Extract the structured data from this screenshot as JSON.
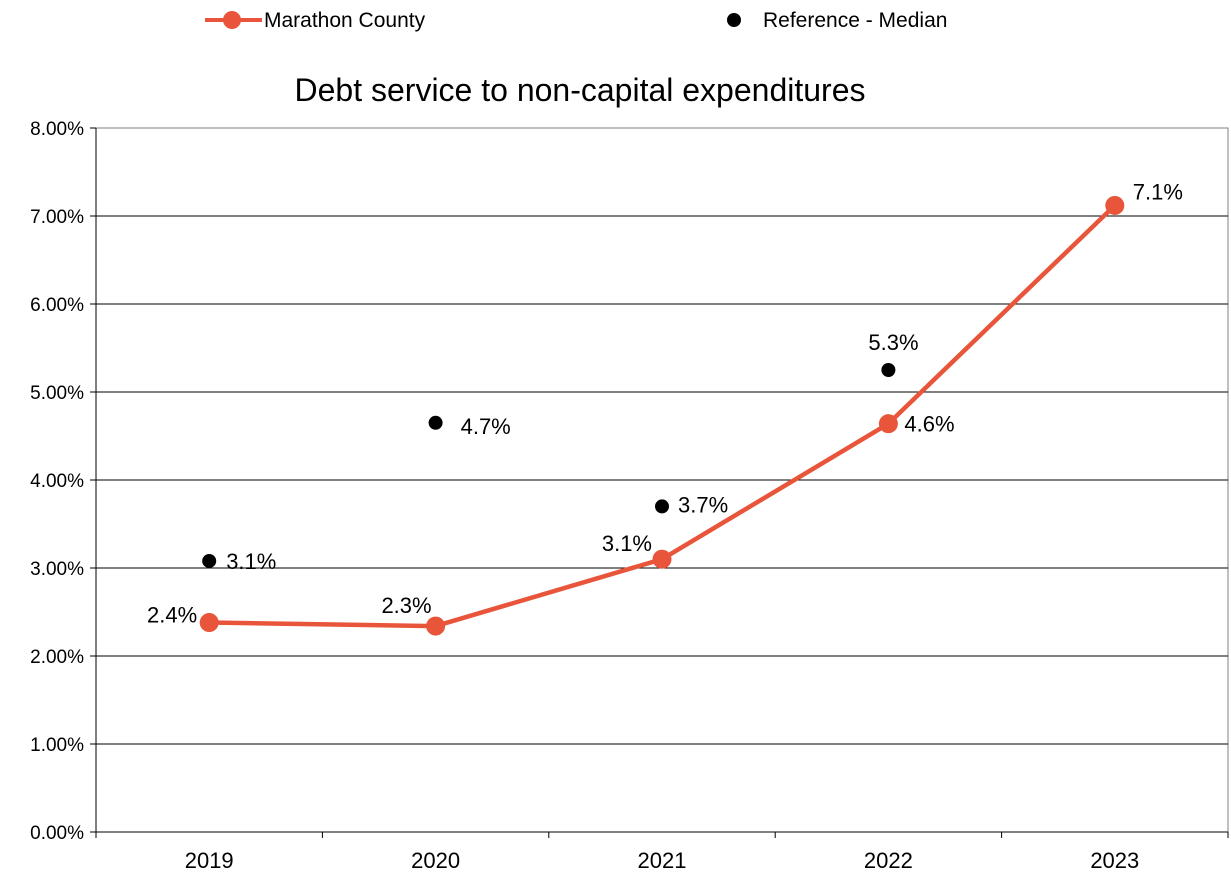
{
  "chart_data": {
    "type": "line",
    "title": "Debt service to non-capital expenditures",
    "xlabel": "",
    "ylabel": "",
    "categories": [
      "2019",
      "2020",
      "2021",
      "2022",
      "2023"
    ],
    "ylim": [
      0,
      0.08
    ],
    "yticks": [
      "0.00%",
      "1.00%",
      "2.00%",
      "3.00%",
      "4.00%",
      "5.00%",
      "6.00%",
      "7.00%",
      "8.00%"
    ],
    "grid": true,
    "legend_position": "top",
    "series": [
      {
        "name": "Marathon County",
        "kind": "line-with-markers",
        "color": "#E8553A",
        "values": [
          0.0238,
          0.0234,
          0.031,
          0.0464,
          0.0712
        ],
        "labels": [
          "2.4%",
          "2.3%",
          "3.1%",
          "4.6%",
          "7.1%"
        ]
      },
      {
        "name": "Reference - Median",
        "kind": "markers",
        "color": "#000000",
        "values": [
          0.0308,
          0.0465,
          0.037,
          0.0525,
          null
        ],
        "labels": [
          "3.1%",
          "4.7%",
          "3.7%",
          "5.3%",
          ""
        ]
      }
    ]
  }
}
